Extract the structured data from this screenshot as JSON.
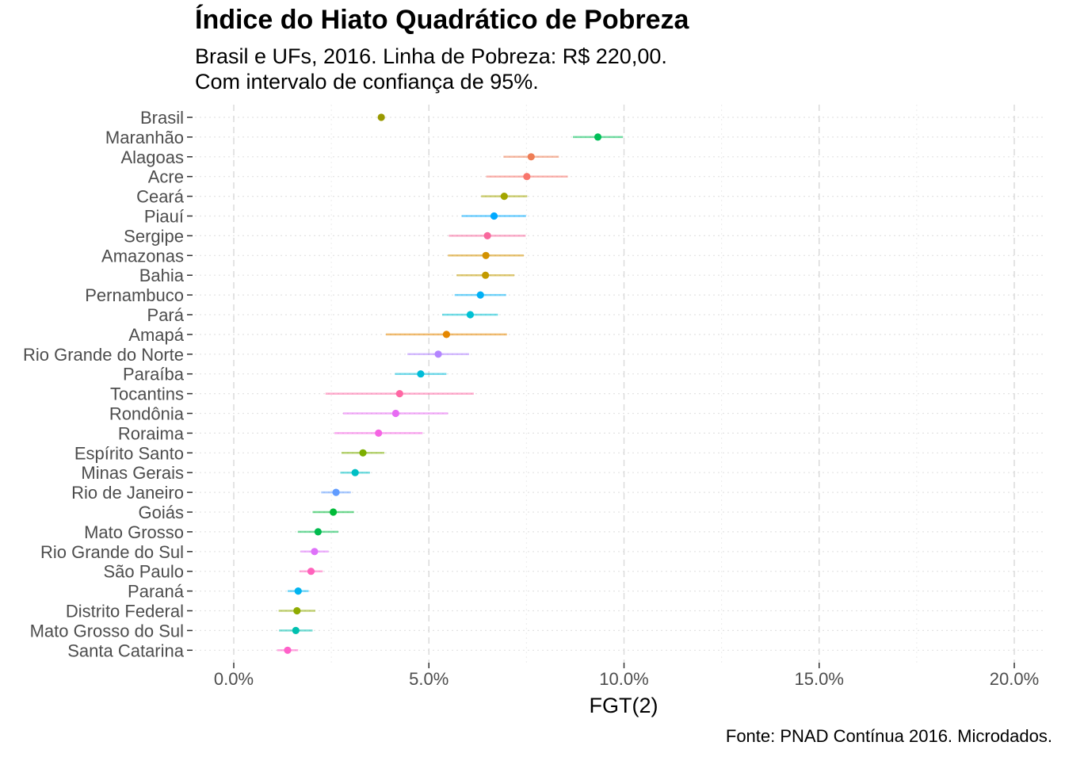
{
  "chart_data": {
    "type": "scatter",
    "title": "Índice do Hiato Quadrático de Pobreza",
    "subtitle_lines": [
      "Brasil e UFs, 2016. Linha de Pobreza: R$ 220,00.",
      "Com intervalo de confiança de 95%."
    ],
    "xlabel": "FGT(2)",
    "ylabel": "",
    "caption": "Fonte: PNAD Contínua 2016. Microdados.",
    "xlim": [
      -0.01,
      0.207
    ],
    "xticks": [
      0.0,
      0.05,
      0.1,
      0.15,
      0.2
    ],
    "xtick_labels": [
      "0.0%",
      "5.0%",
      "10.0%",
      "15.0%",
      "20.0%"
    ],
    "grid": true,
    "legend": "none",
    "series": [
      {
        "name": "Brasil",
        "value": 0.0378,
        "ci": [
          0.0371,
          0.0386
        ],
        "color": "#999900"
      },
      {
        "name": "Maranhão",
        "value": 0.0933,
        "ci": [
          0.0869,
          0.0997
        ],
        "color": "#00BF58"
      },
      {
        "name": "Alagoas",
        "value": 0.0762,
        "ci": [
          0.0691,
          0.0833
        ],
        "color": "#EE7D55"
      },
      {
        "name": "Acre",
        "value": 0.0751,
        "ci": [
          0.0647,
          0.0856
        ],
        "color": "#F8766D"
      },
      {
        "name": "Ceará",
        "value": 0.0693,
        "ci": [
          0.0634,
          0.0752
        ],
        "color": "#A3A500"
      },
      {
        "name": "Piauí",
        "value": 0.0667,
        "ci": [
          0.0584,
          0.0749
        ],
        "color": "#00A9FF"
      },
      {
        "name": "Sergipe",
        "value": 0.065,
        "ci": [
          0.0551,
          0.0748
        ],
        "color": "#F8689D"
      },
      {
        "name": "Amazonas",
        "value": 0.0646,
        "ci": [
          0.0549,
          0.0743
        ],
        "color": "#D39200"
      },
      {
        "name": "Bahia",
        "value": 0.0645,
        "ci": [
          0.0571,
          0.0719
        ],
        "color": "#C39A00"
      },
      {
        "name": "Pernambuco",
        "value": 0.0632,
        "ci": [
          0.0566,
          0.0698
        ],
        "color": "#00B0F6"
      },
      {
        "name": "Pará",
        "value": 0.0606,
        "ci": [
          0.0534,
          0.0677
        ],
        "color": "#00C1D4"
      },
      {
        "name": "Amapá",
        "value": 0.0545,
        "ci": [
          0.039,
          0.07
        ],
        "color": "#E58700"
      },
      {
        "name": "Rio Grande do Norte",
        "value": 0.0524,
        "ci": [
          0.0445,
          0.0603
        ],
        "color": "#B385FF"
      },
      {
        "name": "Paraíba",
        "value": 0.0479,
        "ci": [
          0.0413,
          0.0545
        ],
        "color": "#00BCD8"
      },
      {
        "name": "Tocantins",
        "value": 0.0425,
        "ci": [
          0.0235,
          0.0615
        ],
        "color": "#FF67A4"
      },
      {
        "name": "Rondônia",
        "value": 0.0415,
        "ci": [
          0.028,
          0.0549
        ],
        "color": "#E76BF3"
      },
      {
        "name": "Roraima",
        "value": 0.0371,
        "ci": [
          0.0258,
          0.0484
        ],
        "color": "#F564E3"
      },
      {
        "name": "Espírito Santo",
        "value": 0.0331,
        "ci": [
          0.0276,
          0.0386
        ],
        "color": "#7CAE00"
      },
      {
        "name": "Minas Gerais",
        "value": 0.0311,
        "ci": [
          0.0273,
          0.0349
        ],
        "color": "#00BFC4"
      },
      {
        "name": "Rio de Janeiro",
        "value": 0.0262,
        "ci": [
          0.0224,
          0.03
        ],
        "color": "#619CFF"
      },
      {
        "name": "Goiás",
        "value": 0.0255,
        "ci": [
          0.0202,
          0.0308
        ],
        "color": "#00BA38"
      },
      {
        "name": "Mato Grosso",
        "value": 0.0216,
        "ci": [
          0.0164,
          0.0268
        ],
        "color": "#00BB4E"
      },
      {
        "name": "Rio Grande do Sul",
        "value": 0.0207,
        "ci": [
          0.0171,
          0.0243
        ],
        "color": "#DE71F9"
      },
      {
        "name": "São Paulo",
        "value": 0.0198,
        "ci": [
          0.0168,
          0.0228
        ],
        "color": "#FF62BC"
      },
      {
        "name": "Paraná",
        "value": 0.0165,
        "ci": [
          0.0138,
          0.0192
        ],
        "color": "#00B4F0"
      },
      {
        "name": "Distrito Federal",
        "value": 0.0162,
        "ci": [
          0.0115,
          0.0209
        ],
        "color": "#8EAB00"
      },
      {
        "name": "Mato Grosso do Sul",
        "value": 0.0159,
        "ci": [
          0.0116,
          0.0202
        ],
        "color": "#00C0AF"
      },
      {
        "name": "Santa Catarina",
        "value": 0.0138,
        "ci": [
          0.0111,
          0.0165
        ],
        "color": "#FF61C9"
      }
    ]
  }
}
